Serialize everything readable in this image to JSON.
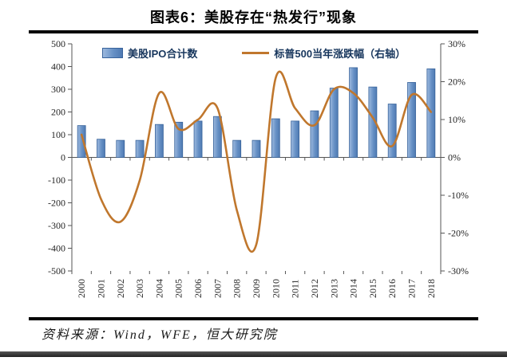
{
  "title": "图表6：美股存在“热发行”现象",
  "source": "资料来源：Wind，WFE，恒大研究院",
  "legend": [
    {
      "label": "美股IPO合计数",
      "swatch": "bar",
      "color": "#6690c5"
    },
    {
      "label": "标普500当年涨跌幅（右轴）",
      "swatch": "line",
      "color": "#c0772d"
    }
  ],
  "colors": {
    "bar_fill": "#6690c5",
    "bar_fill_light": "#9db9de",
    "bar_fill_dark": "#4f7ab2",
    "bar_border": "#38639b",
    "line": "#c0772d",
    "axis": "#555555",
    "legend_text": "#17365d",
    "rule": "#000000"
  },
  "chart_data": {
    "type": "combo-bar-line",
    "categories": [
      "2000",
      "2001",
      "2002",
      "2003",
      "2004",
      "2005",
      "2006",
      "2007",
      "2008",
      "2009",
      "2010",
      "2011",
      "2012",
      "2013",
      "2014",
      "2015",
      "2016",
      "2017",
      "2018"
    ],
    "series": [
      {
        "name": "美股IPO合计数",
        "type": "bar",
        "axis": "left",
        "values": [
          140,
          80,
          75,
          75,
          145,
          155,
          160,
          180,
          75,
          75,
          170,
          160,
          205,
          305,
          395,
          310,
          235,
          330,
          390
        ]
      },
      {
        "name": "标普500当年涨跌幅（右轴）",
        "type": "line",
        "axis": "right",
        "unit": "%",
        "values": [
          6,
          -11,
          -17,
          -6,
          17,
          7.5,
          10,
          13,
          -14,
          -23,
          21,
          13,
          8.5,
          18,
          17,
          10.5,
          3,
          16.5,
          12
        ]
      }
    ],
    "left_axis": {
      "min": -500,
      "max": 500,
      "step": 100,
      "ticks": [
        500,
        400,
        300,
        200,
        100,
        0,
        -100,
        -200,
        -300,
        -400,
        -500
      ]
    },
    "right_axis": {
      "min": -30,
      "max": 30,
      "step": 10,
      "ticks": [
        "30%",
        "20%",
        "10%",
        "0%",
        "-10%",
        "-20%",
        "-30%"
      ],
      "tick_values": [
        30,
        20,
        10,
        0,
        -10,
        -20,
        -30
      ]
    },
    "grid": false,
    "legend_position": "top",
    "line_smoothing": true
  }
}
